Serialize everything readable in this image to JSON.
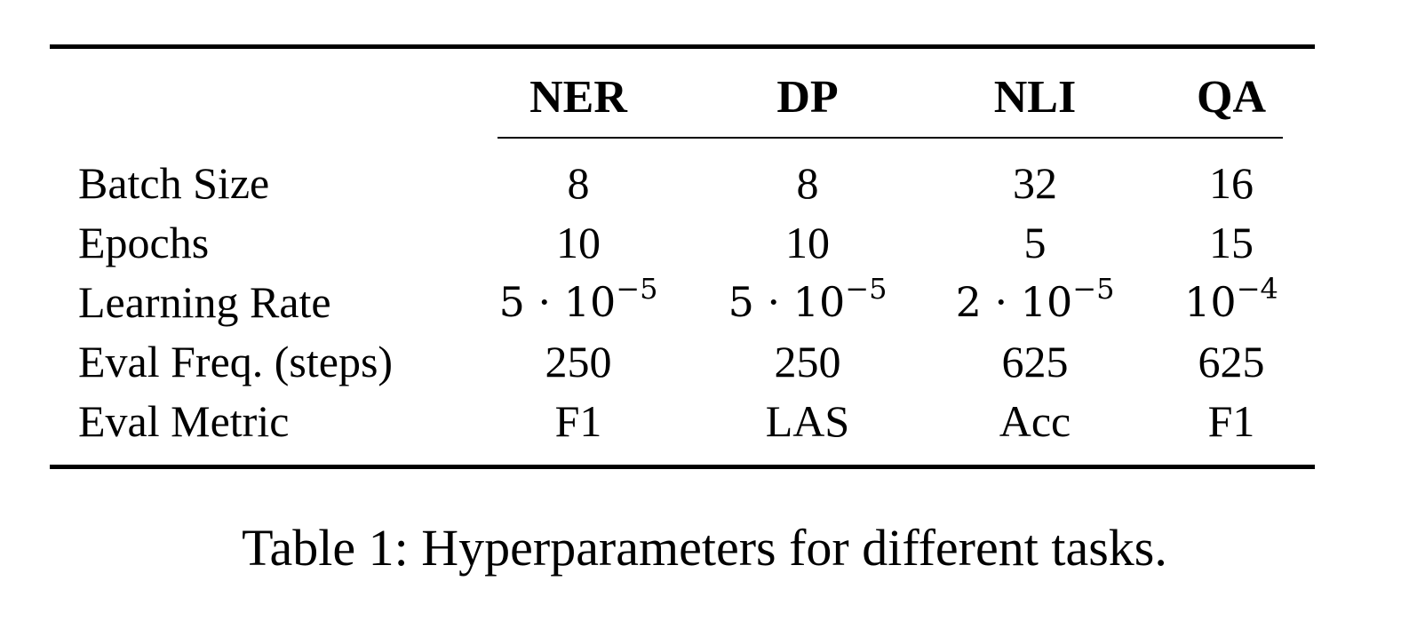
{
  "table": {
    "columns": [
      "NER",
      "DP",
      "NLI",
      "QA"
    ],
    "rows": [
      {
        "label": "Batch Size",
        "values": [
          "8",
          "8",
          "32",
          "16"
        ]
      },
      {
        "label": "Epochs",
        "values": [
          "10",
          "10",
          "5",
          "15"
        ]
      },
      {
        "label": "Learning Rate",
        "values": [
          {
            "base": "5 · 10",
            "exp": "−5"
          },
          {
            "base": "5 · 10",
            "exp": "−5"
          },
          {
            "base": "2 · 10",
            "exp": "−5"
          },
          {
            "base": "10",
            "exp": "−4"
          }
        ]
      },
      {
        "label": "Eval Freq. (steps)",
        "values": [
          "250",
          "250",
          "625",
          "625"
        ]
      },
      {
        "label": "Eval Metric",
        "values": [
          "F1",
          "LAS",
          "Acc",
          "F1"
        ]
      }
    ]
  },
  "caption": "Table 1: Hyperparameters for different tasks."
}
